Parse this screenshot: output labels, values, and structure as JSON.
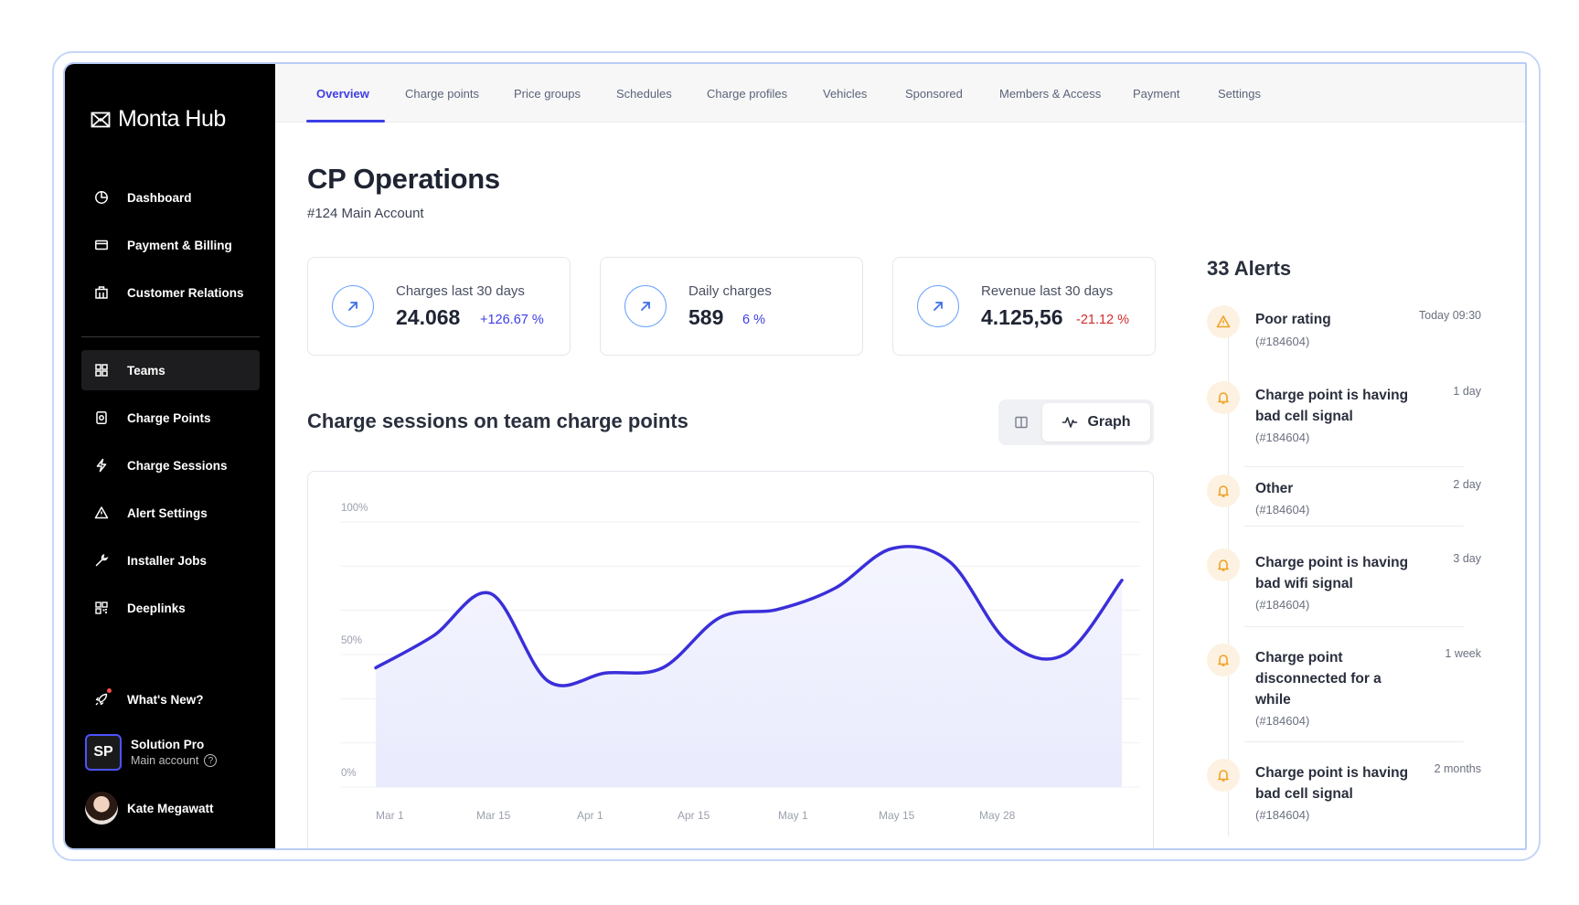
{
  "brand": {
    "name": "Monta Hub",
    "icon": "envelope-logo-icon"
  },
  "sidebar": {
    "items": [
      {
        "label": "Dashboard",
        "icon": "pie-chart-icon"
      },
      {
        "label": "Payment & Billing",
        "icon": "credit-card-icon"
      },
      {
        "label": "Customer Relations",
        "icon": "building-icon"
      },
      {
        "label": "Teams",
        "icon": "grid-icon",
        "active": true
      },
      {
        "label": "Charge Points",
        "icon": "charger-icon"
      },
      {
        "label": "Charge Sessions",
        "icon": "bolt-icon"
      },
      {
        "label": "Alert Settings",
        "icon": "warning-icon"
      },
      {
        "label": "Installer Jobs",
        "icon": "wrench-icon"
      },
      {
        "label": "Deeplinks",
        "icon": "qr-code-icon"
      }
    ],
    "whats_new": "What's New?",
    "account": {
      "initials": "SP",
      "name": "Solution Pro",
      "sub": "Main account",
      "help": "?"
    },
    "user": {
      "name": "Kate Megawatt"
    }
  },
  "tabs": [
    {
      "label": "Overview",
      "active": true
    },
    {
      "label": "Charge points"
    },
    {
      "label": "Price groups"
    },
    {
      "label": "Schedules"
    },
    {
      "label": "Charge profiles"
    },
    {
      "label": "Vehicles"
    },
    {
      "label": "Sponsored"
    },
    {
      "label": "Members & Access"
    },
    {
      "label": "Payment"
    },
    {
      "label": "Settings"
    }
  ],
  "page": {
    "title": "CP Operations",
    "subtitle": "#124 Main Account"
  },
  "stats": [
    {
      "label": "Charges last 30 days",
      "value": "24.068",
      "delta": "+126.67 %",
      "trend": "up"
    },
    {
      "label": "Daily charges",
      "value": "589",
      "delta": "6 %",
      "trend": "up"
    },
    {
      "label": "Revenue last 30 days",
      "value": "4.125,56",
      "delta": "-21.12 %",
      "trend": "down"
    }
  ],
  "chart_section": {
    "title": "Charge sessions on team charge points",
    "toggle_graph_label": "Graph"
  },
  "chart_data": {
    "type": "area",
    "title": "Charge sessions on team charge points",
    "x_ticks": [
      "Mar 1",
      "Mar 15",
      "Apr 1",
      "Apr 15",
      "May 1",
      "May 15",
      "May 28"
    ],
    "y_ticks": [
      "100%",
      "50%",
      "0%"
    ],
    "ylim": [
      0,
      100
    ],
    "series": [
      {
        "x": [
          "Mar 1",
          "Mar 8",
          "Mar 15",
          "Mar 23",
          "Apr 1",
          "Apr 8",
          "Apr 15",
          "Apr 23",
          "May 1",
          "May 8",
          "May 15",
          "May 21",
          "May 28",
          "Jun 1"
        ],
        "values": [
          45,
          57,
          73,
          40,
          43,
          45,
          64,
          67,
          75,
          90,
          85,
          55,
          50,
          78
        ]
      }
    ],
    "grid": true,
    "colors": {
      "line": "#3a2fd9",
      "fill": "#e9ebfd"
    }
  },
  "alerts": {
    "title": "33 Alerts",
    "items": [
      {
        "title": "Poor rating",
        "id": "(#184604)",
        "time": "Today 09:30",
        "icon": "warning-icon"
      },
      {
        "title": "Charge point is having bad cell signal",
        "id": "(#184604)",
        "time": "1 day",
        "icon": "bell-icon"
      },
      {
        "title": "Other",
        "id": "(#184604)",
        "time": "2 day",
        "icon": "bell-icon"
      },
      {
        "title": "Charge point is having bad wifi signal",
        "id": "(#184604)",
        "time": "3 day",
        "icon": "bell-icon"
      },
      {
        "title": "Charge point disconnected for a while",
        "id": "(#184604)",
        "time": "1 week",
        "icon": "bell-icon"
      },
      {
        "title": "Charge point is having bad cell signal",
        "id": "(#184604)",
        "time": "2 months",
        "icon": "bell-icon"
      }
    ]
  },
  "colors": {
    "accent": "#3d3ee5",
    "negative": "#d32b2b",
    "alert_icon": "#f0a224",
    "sidebar_bg": "#000000"
  }
}
